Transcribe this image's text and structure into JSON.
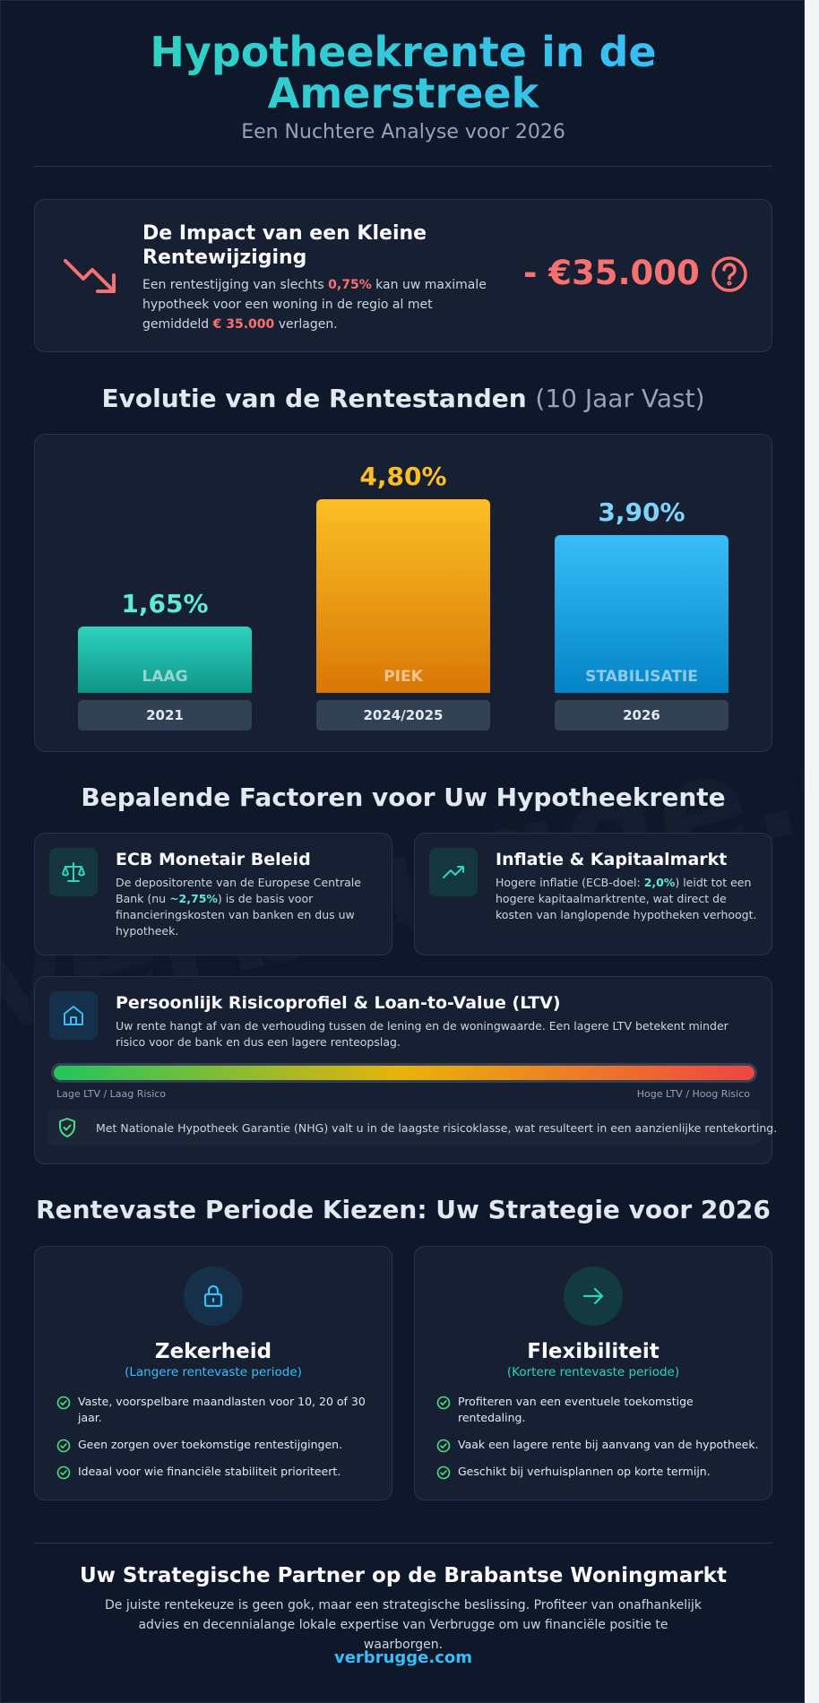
{
  "header": {
    "title": "Hypotheekrente in de Amerstreek",
    "subtitle": "Een Nuchtere Analyse voor 2026"
  },
  "impact": {
    "title": "De Impact van een Kleine Rentewijziging",
    "text_1": "Een rentestijging van slechts ",
    "highlight_1": "0,75%",
    "text_2": " kan uw maximale hypotheek voor een woning in de regio al met gemiddeld ",
    "highlight_2": "€ 35.000",
    "text_3": " verlagen.",
    "value": "- €35.000",
    "icon": "trending-down-icon"
  },
  "chart_section": {
    "title": "Evolutie van de Rentestanden",
    "title_muted": "(10 Jaar Vast)"
  },
  "chart_data": {
    "type": "bar",
    "title": "Evolutie van de Rentestanden (10 Jaar Vast)",
    "categories": [
      "2021",
      "2024/2025",
      "2026"
    ],
    "values": [
      1.65,
      4.8,
      3.9
    ],
    "value_labels": [
      "1,65%",
      "4,80%",
      "3,90%"
    ],
    "bar_labels": [
      "LAAG",
      "PIEK",
      "STABILISATIE"
    ],
    "colors": [
      {
        "top": "#2dd4bf",
        "bottom": "#0f9488",
        "text": "#5eead4"
      },
      {
        "top": "#fbbf24",
        "bottom": "#d97706",
        "text": "#fbbf24"
      },
      {
        "top": "#38bdf8",
        "bottom": "#0284c7",
        "text": "#7dd3fc"
      }
    ],
    "ylim": [
      0,
      4.8
    ]
  },
  "factors": {
    "title": "Bepalende Factoren voor Uw Hypotheekrente",
    "ecb": {
      "title": "ECB Monetair Beleid",
      "text_1": "De depositorente van de Europese Centrale Bank (nu ",
      "highlight": "~2,75%",
      "text_2": ") is de basis voor financieringskosten van banken en dus uw hypotheek.",
      "icon": "scale-icon"
    },
    "inflation": {
      "title": "Inflatie & Kapitaalmarkt",
      "text_1": "Hogere inflatie (ECB-doel: ",
      "highlight": "2,0%",
      "text_2": ") leidt tot een hogere kapitaalmarktrente, wat direct de kosten van langlopende hypotheken verhoogt.",
      "icon": "trending-up-icon"
    },
    "risk": {
      "title": "Persoonlijk Risicoprofiel & Loan-to-Value (LTV)",
      "text": "Uw rente hangt af van de verhouding tussen de lening en de woningwaarde. Een lagere LTV betekent minder risico voor de bank en dus een lagere renteopslag.",
      "low_label": "Lage LTV / Laag Risico",
      "high_label": "Hoge LTV / Hoog Risico",
      "nhg_text": "Met Nationale Hypotheek Garantie (NHG) valt u in de laagste risicoklasse, wat resulteert in een aanzienlijke rentekorting.",
      "icon": "home-icon"
    }
  },
  "strategy": {
    "title": "Rentevaste Periode Kiezen: Uw Strategie voor 2026",
    "certainty": {
      "title": "Zekerheid",
      "subtitle": "(Langere rentevaste periode)",
      "items": [
        "Vaste, voorspelbare maandlasten voor 10, 20 of 30 jaar.",
        "Geen zorgen over toekomstige rentestijgingen.",
        "Ideaal voor wie financiële stabiliteit prioriteert."
      ],
      "icon": "lock-icon"
    },
    "flexibility": {
      "title": "Flexibiliteit",
      "subtitle": "(Kortere rentevaste periode)",
      "items": [
        "Profiteren van een eventuele toekomstige rentedaling.",
        "Vaak een lagere rente bij aanvang van de hypotheek.",
        "Geschikt bij verhuisplannen op korte termijn."
      ],
      "icon": "arrow-right-icon"
    }
  },
  "footer": {
    "title": "Uw Strategische Partner op de Brabantse Woningmarkt",
    "text": "De juiste rentekeuze is geen gok, maar een strategische beslissing. Profiteer van onafhankelijk advies en decennialange lokale expertise van Verbrugge om uw financiële positie te waarborgen.",
    "link": "verbrugge.com"
  },
  "watermark": "verbrugge.com"
}
